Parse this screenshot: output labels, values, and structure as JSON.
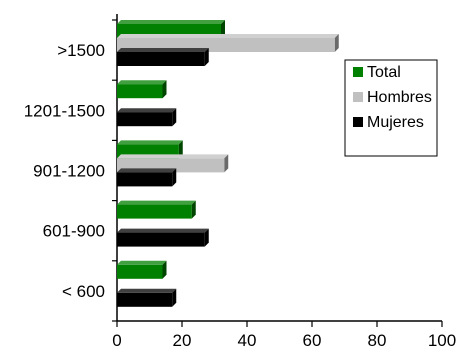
{
  "chart_data": {
    "type": "bar",
    "orientation": "horizontal",
    "style": "3d",
    "categories": [
      ">1500",
      "1201-1500",
      "901-1200",
      "601-900",
      "< 600"
    ],
    "series": [
      {
        "name": "Total",
        "color": "#008000",
        "values": [
          32,
          14,
          19,
          23,
          14
        ]
      },
      {
        "name": "Hombres",
        "color": "#c0c0c0",
        "values": [
          67,
          0,
          33,
          0,
          0
        ]
      },
      {
        "name": "Mujeres",
        "color": "#000000",
        "values": [
          27,
          17,
          17,
          27,
          17
        ]
      }
    ],
    "title": "",
    "xlabel": "",
    "ylabel": "",
    "xlim": [
      0,
      100
    ],
    "xticks": [
      "0",
      "20",
      "40",
      "60",
      "80",
      "100"
    ],
    "grid": false,
    "legend_position": "right"
  }
}
